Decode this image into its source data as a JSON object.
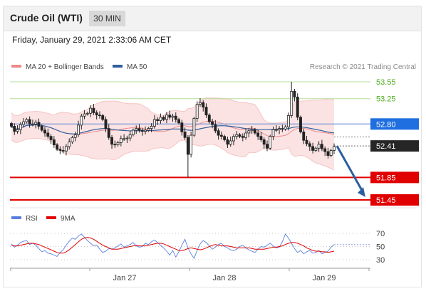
{
  "header": {
    "instrument": "Crude Oil (WTI)",
    "timeframe": "30 MIN",
    "datetime": "Friday, January 29, 2021 2:33:06 AM CET"
  },
  "legend": {
    "bollinger": "MA 20 + Bollinger Bands",
    "ma50": "MA 50",
    "credit": "Research © 2021 Trading Central",
    "rsi": "RSI",
    "rsi_ma": "9MA"
  },
  "colors": {
    "candle": "#222222",
    "bollinger_fill": "#fbe3e3",
    "ma20": "#f08a8a",
    "ma50": "#2f5f9e",
    "resistance_green": "#4caf1e",
    "support_red": "#e00000",
    "pivot_blue": "#1f6fe0",
    "forecast_arrow": "#2a5fa0",
    "rsi_line": "#5b7fe0",
    "rsi_ma_line": "#e00000"
  },
  "chart_data": {
    "type": "candlestick",
    "interval": "30 MIN",
    "x_tick_labels": [
      "Jan 27",
      "Jan 28",
      "Jan 29"
    ],
    "y_range": [
      51.2,
      53.75
    ],
    "current_price": 52.41,
    "levels": [
      {
        "label": "53.55",
        "value": 53.55,
        "kind": "resistance"
      },
      {
        "label": "53.25",
        "value": 53.25,
        "kind": "resistance"
      },
      {
        "label": "52.80",
        "value": 52.8,
        "kind": "pivot"
      },
      {
        "label": "52.41",
        "value": 52.41,
        "kind": "last"
      },
      {
        "label": "51.85",
        "value": 51.85,
        "kind": "support"
      },
      {
        "label": "51.45",
        "value": 51.45,
        "kind": "support"
      }
    ],
    "forecast": {
      "from": 52.41,
      "to": 51.45
    },
    "closes": [
      52.76,
      52.67,
      52.7,
      52.79,
      52.84,
      52.88,
      52.8,
      52.8,
      52.83,
      52.76,
      52.69,
      52.64,
      52.58,
      52.52,
      52.43,
      52.35,
      52.33,
      52.32,
      52.4,
      52.48,
      52.56,
      52.61,
      52.78,
      52.94,
      52.98,
      52.99,
      53.08,
      53.0,
      52.96,
      52.95,
      52.88,
      52.72,
      52.56,
      52.44,
      52.43,
      52.47,
      52.54,
      52.54,
      52.55,
      52.61,
      52.69,
      52.72,
      52.69,
      52.67,
      52.69,
      52.72,
      52.76,
      52.88,
      52.86,
      52.92,
      52.88,
      52.96,
      52.92,
      52.94,
      52.88,
      52.82,
      52.66,
      52.56,
      52.26,
      52.6,
      52.9,
      53.15,
      53.18,
      53.1,
      52.96,
      52.84,
      52.79,
      52.68,
      52.6,
      52.58,
      52.52,
      52.44,
      52.5,
      52.58,
      52.61,
      52.58,
      52.56,
      52.64,
      52.68,
      52.7,
      52.64,
      52.58,
      52.52,
      52.44,
      52.37,
      52.58,
      52.7,
      52.7,
      52.72,
      52.71,
      52.75,
      52.95,
      53.38,
      53.28,
      52.92,
      52.66,
      52.51,
      52.45,
      52.4,
      52.33,
      52.37,
      52.44,
      52.36,
      52.31,
      52.24,
      52.33,
      52.4
    ],
    "rsi": {
      "ticks": [
        70,
        50,
        30
      ],
      "range": [
        25,
        75
      ],
      "rsi_values": [
        54,
        49,
        52,
        56,
        58,
        59,
        53,
        55,
        52,
        47,
        42,
        44,
        40,
        39,
        37,
        35,
        41,
        45,
        52,
        58,
        63,
        61,
        66,
        69,
        64,
        59,
        55,
        51,
        52,
        46,
        41,
        43,
        47,
        46,
        48,
        51,
        54,
        49,
        51,
        53,
        56,
        51,
        49,
        50,
        55,
        53,
        57,
        60,
        56,
        52,
        48,
        43,
        37,
        44,
        34,
        42,
        52,
        61,
        48,
        39,
        32,
        44,
        54,
        59,
        56,
        51,
        46,
        49,
        53,
        55,
        50,
        48,
        45,
        44,
        46,
        50,
        52,
        48,
        45,
        43,
        41,
        46,
        50,
        49,
        52,
        55,
        51,
        48,
        49,
        57,
        69,
        63,
        55,
        47,
        41,
        44,
        39,
        42,
        44,
        40,
        41,
        44,
        39,
        41,
        43,
        49,
        53
      ],
      "ma_values": [
        52,
        51,
        51,
        52,
        53,
        54,
        55,
        55,
        54,
        53,
        51,
        49,
        47,
        45,
        43,
        41,
        40,
        40,
        42,
        45,
        49,
        53,
        57,
        61,
        63,
        64,
        63,
        61,
        58,
        55,
        52,
        50,
        48,
        46,
        46,
        46,
        47,
        48,
        49,
        50,
        51,
        52,
        51,
        51,
        51,
        52,
        53,
        54,
        55,
        55,
        54,
        52,
        50,
        48,
        46,
        44,
        44,
        45,
        47,
        48,
        47,
        46,
        45,
        46,
        48,
        50,
        52,
        53,
        52,
        51,
        51,
        51,
        50,
        49,
        48,
        48,
        48,
        48,
        48,
        47,
        46,
        46,
        46,
        46,
        47,
        48,
        49,
        49,
        50,
        51,
        53,
        55,
        56,
        56,
        55,
        53,
        51,
        48,
        46,
        44,
        43,
        43,
        42,
        42,
        41,
        42,
        43
      ]
    }
  }
}
